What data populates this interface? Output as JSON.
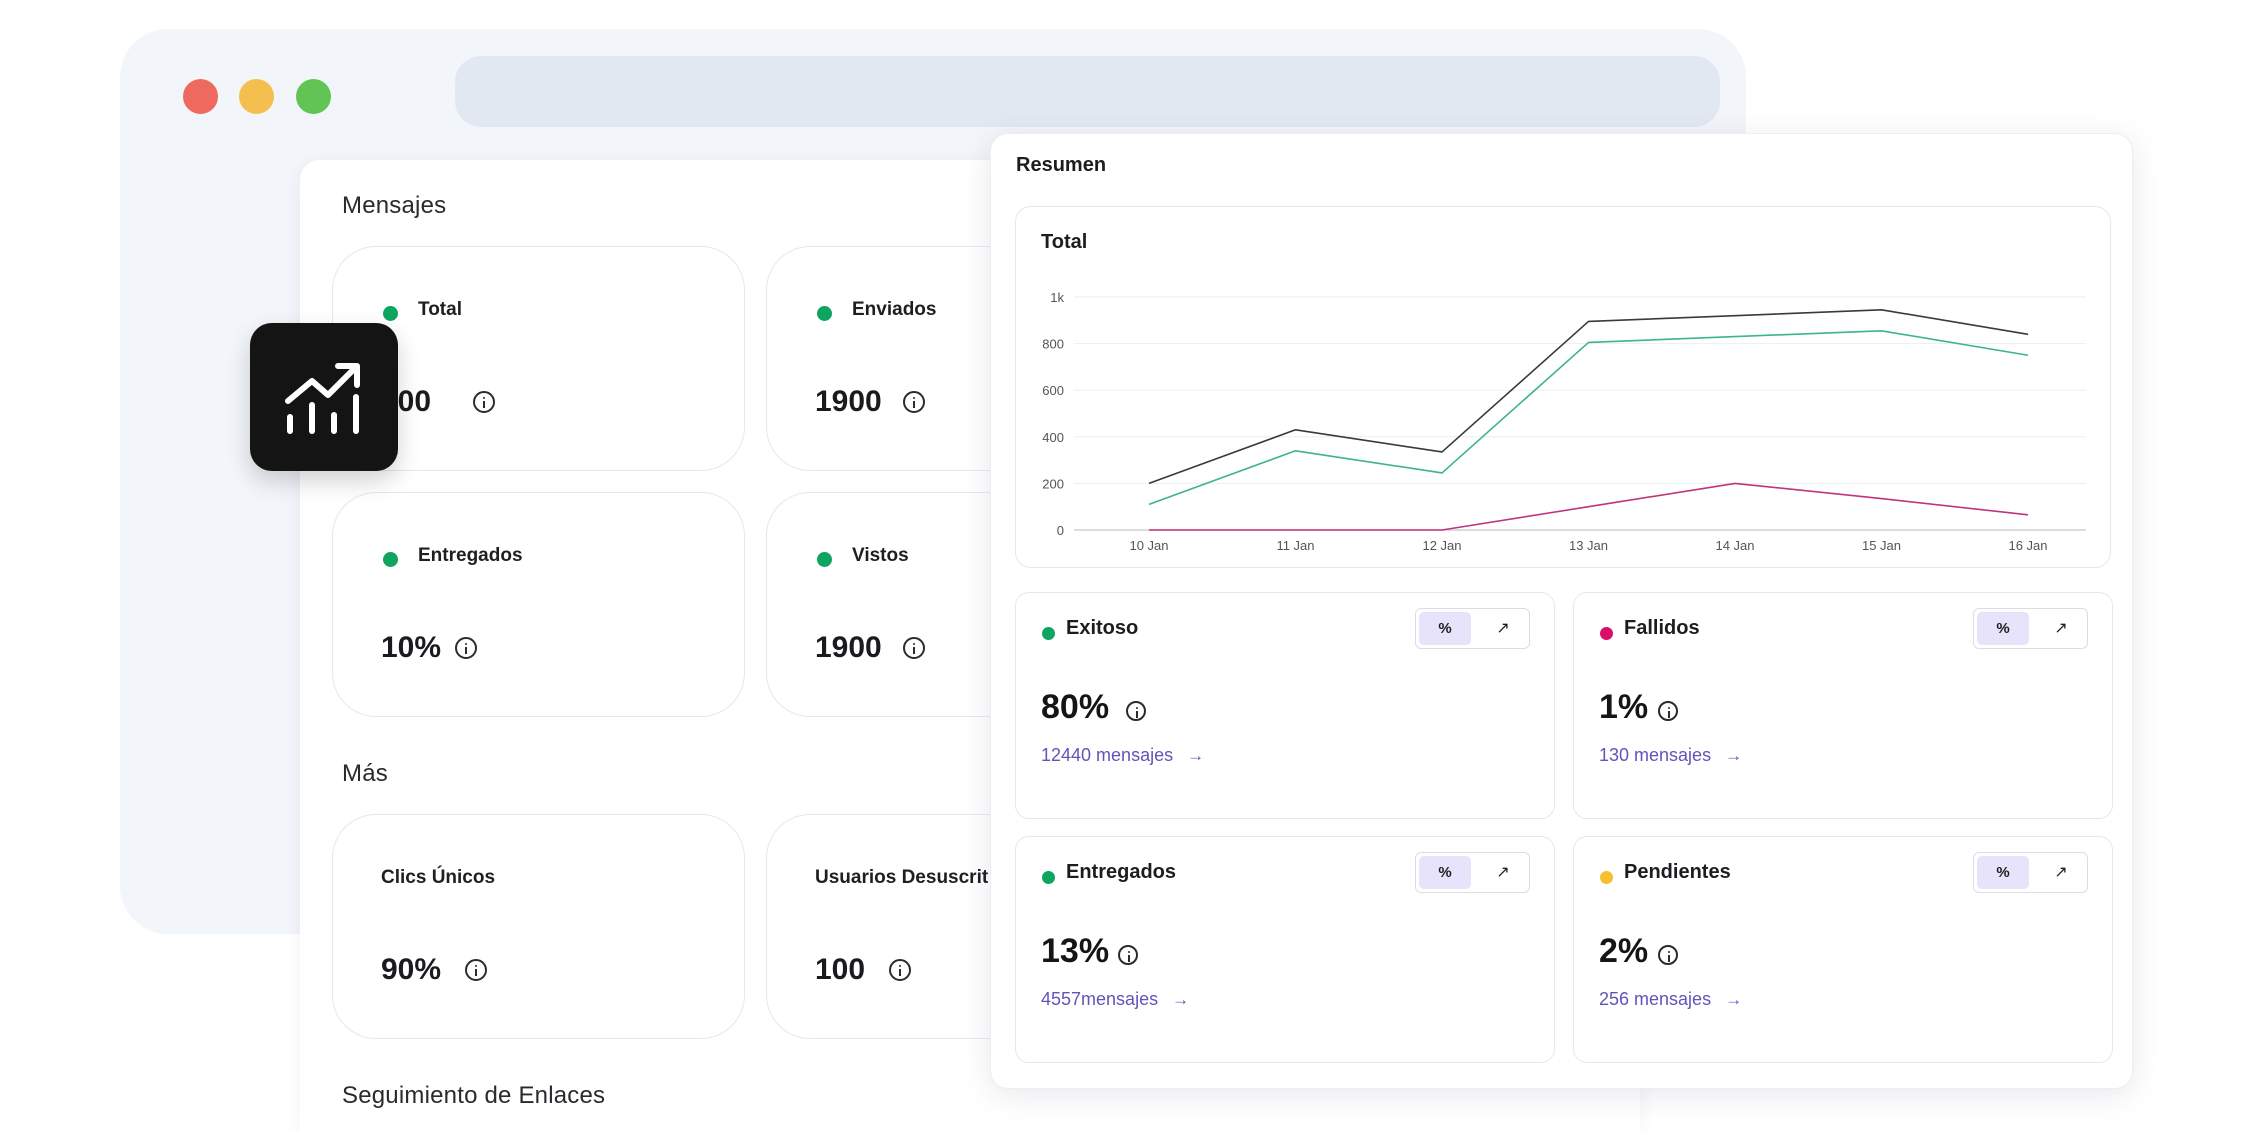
{
  "browser": {
    "traffic_lights": [
      "close",
      "minimize",
      "maximize"
    ],
    "url_bar": ""
  },
  "messages": {
    "section_title": "Mensajes",
    "cards": [
      {
        "label": "Total",
        "value": "500"
      },
      {
        "label": "Enviados",
        "value": "1900"
      },
      {
        "label": "Entregados",
        "value": "10%"
      },
      {
        "label": "Vistos",
        "value": "1900"
      }
    ]
  },
  "more": {
    "section_title": "Más",
    "cards": [
      {
        "label": "Clics Únicos",
        "value": "90%"
      },
      {
        "label": "Usuarios Desuscrit",
        "value": "100"
      }
    ]
  },
  "link_tracking": {
    "section_title": "Seguimiento de Enlaces"
  },
  "summary": {
    "title": "Resumen",
    "chart_title": "Total",
    "metrics": [
      {
        "label": "Exitoso",
        "value": "80%",
        "link": "12440 mensajes",
        "dot_color": "#0fa560"
      },
      {
        "label": "Fallidos",
        "value": "1%",
        "link": "130 mensajes",
        "dot_color": "#d6106a"
      },
      {
        "label": "Entregados",
        "value": "13%",
        "link": "4557mensajes",
        "dot_color": "#0fa560"
      },
      {
        "label": "Pendientes",
        "value": "2%",
        "link": "256 mensajes",
        "dot_color": "#f5bf2e"
      }
    ],
    "toggle_pct": "%",
    "toggle_trend": "↗",
    "link_arrow": "→"
  },
  "chart_data": {
    "type": "line",
    "title": "Total",
    "x": [
      "10 Jan",
      "11 Jan",
      "12 Jan",
      "13 Jan",
      "14 Jan",
      "15 Jan",
      "16 Jan"
    ],
    "y_ticks": [
      "0",
      "200",
      "400",
      "600",
      "800",
      "1k"
    ],
    "ylim": [
      0,
      1000
    ],
    "grid": true,
    "series": [
      {
        "values": [
          200,
          430,
          335,
          895,
          920,
          945,
          840
        ],
        "color": "#3a3a3a"
      },
      {
        "values": [
          110,
          340,
          245,
          805,
          830,
          855,
          750
        ],
        "color": "#3db48a"
      },
      {
        "values": [
          0,
          0,
          0,
          100,
          200,
          135,
          65
        ],
        "color": "#c0357a"
      }
    ]
  }
}
